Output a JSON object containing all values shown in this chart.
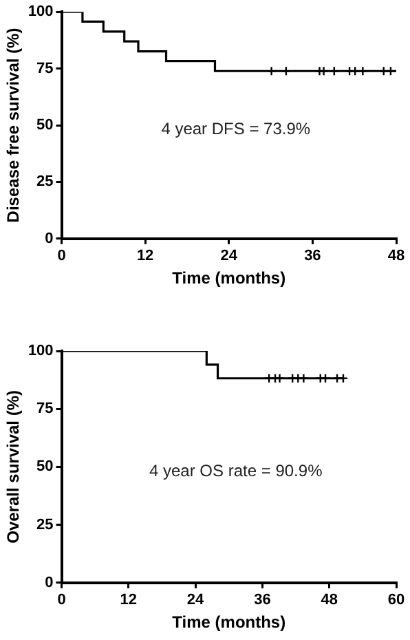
{
  "chart_data": [
    {
      "type": "step",
      "xlabel": "Time (months)",
      "ylabel": "Disease free survival (%)",
      "annotations": [
        "4 year DFS = 73.9%"
      ],
      "xlim": [
        0,
        48
      ],
      "xticks": [
        0,
        12,
        24,
        36,
        48
      ],
      "ylim": [
        0,
        100
      ],
      "yticks": [
        0,
        25,
        50,
        75,
        100
      ],
      "grid": false,
      "legend": false,
      "series": [
        {
          "color": "#000000",
          "x": [
            0,
            3,
            6,
            9,
            11,
            15,
            22,
            48
          ],
          "values": [
            100,
            95.7,
            91.3,
            87.0,
            82.6,
            78.3,
            73.9,
            73.9
          ]
        },
        {
          "type": "scatter",
          "marker": "cross",
          "color": "#000000",
          "x": [
            30.1,
            32.2,
            37,
            37.6,
            39.1,
            41.3,
            42.1,
            43.2,
            46.2,
            47.2
          ],
          "values": [
            73.9,
            73.9,
            73.9,
            73.9,
            73.9,
            73.9,
            73.9,
            73.9,
            73.9,
            73.9
          ]
        }
      ]
    },
    {
      "type": "step",
      "xlabel": "Time (months)",
      "ylabel": "Overall survival (%)",
      "annotations": [
        "4 year OS rate = 90.9%"
      ],
      "xlim": [
        0,
        60
      ],
      "xticks": [
        0,
        12,
        24,
        36,
        48,
        60
      ],
      "ylim": [
        0,
        100
      ],
      "yticks": [
        0,
        25,
        50,
        75,
        100
      ],
      "grid": false,
      "legend": false,
      "series": [
        {
          "color": "#000000",
          "x": [
            0,
            26,
            28,
            50.5
          ],
          "values": [
            100,
            94.1,
            88.2,
            88.2
          ]
        },
        {
          "type": "scatter",
          "marker": "cross",
          "color": "#000000",
          "x": [
            37.2,
            38.3,
            39.1,
            41.4,
            42.4,
            43.4,
            46.4,
            47.3,
            49.4,
            50.5
          ],
          "values": [
            88.2,
            88.2,
            88.2,
            88.2,
            88.2,
            88.2,
            88.2,
            88.2,
            88.2,
            88.2
          ]
        }
      ]
    }
  ]
}
